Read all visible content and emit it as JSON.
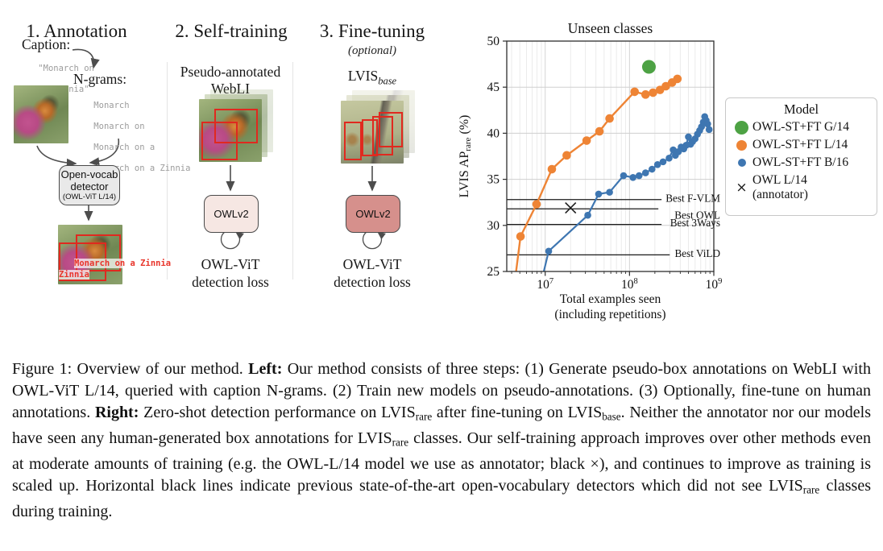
{
  "diagram": {
    "steps": [
      {
        "title": "1. Annotation",
        "caption_label": "Caption:",
        "caption_line1": "\"Monarch on",
        "caption_line2": " a Zinnia\"",
        "ngrams_label": "N-grams:",
        "ngrams": [
          "Monarch",
          "Monarch on",
          "Monarch on a",
          "Monarch on a Zinnia",
          "..."
        ],
        "detector_line1": "Open-vocab",
        "detector_line2": "detector",
        "detector_line3": "(OWL-ViT L/14)",
        "detections": [
          "Monarch on a Zinnia",
          "Zinnia"
        ]
      },
      {
        "title": "2. Self-training",
        "data_label_line1": "Pseudo-annotated",
        "data_label_line2": "WebLI",
        "model_box": "OWLv2",
        "loss_line1": "OWL-ViT",
        "loss_line2": "detection loss"
      },
      {
        "title": "3. Fine-tuning",
        "subtitle": "(optional)",
        "data_label_main": "LVIS",
        "data_label_sub": "base",
        "model_box": "OWLv2",
        "loss_line1": "OWL-ViT",
        "loss_line2": "detection loss"
      }
    ]
  },
  "chart_data": {
    "type": "scatter",
    "title": "Unseen classes",
    "xlabel_line1": "Total examples seen",
    "xlabel_line2": "(including repetitions)",
    "ylabel_pre": "LVIS AP",
    "ylabel_sub": "rare",
    "ylabel_post": " (%)",
    "x_scale": "log",
    "xlim": [
      3500000.0,
      1000000000.0
    ],
    "ylim": [
      25,
      50
    ],
    "xticks": [
      10000000.0,
      100000000.0,
      1000000000.0
    ],
    "yticks": [
      25,
      30,
      35,
      40,
      45,
      50
    ],
    "grid": true,
    "series": [
      {
        "name": "OWL-ST+FT G/14",
        "color": "#4da244",
        "marker": "circle",
        "marker_size": 8.5,
        "line": false,
        "points": [
          [
            170000000.0,
            47.2
          ]
        ]
      },
      {
        "name": "OWL-ST+FT L/14",
        "color": "#ee8435",
        "marker": "circle",
        "marker_size": 5.3,
        "line": true,
        "entry_point": [
          4300000.0,
          23.5
        ],
        "points": [
          [
            5100000.0,
            28.8
          ],
          [
            7900000.0,
            32.3
          ],
          [
            12000000.0,
            36.1
          ],
          [
            18000000.0,
            37.6
          ],
          [
            31000000.0,
            39.2
          ],
          [
            44000000.0,
            40.2
          ],
          [
            58000000.0,
            41.6
          ],
          [
            115000000.0,
            44.5
          ],
          [
            155000000.0,
            44.2
          ],
          [
            190000000.0,
            44.4
          ],
          [
            230000000.0,
            44.7
          ],
          [
            270000000.0,
            45.1
          ],
          [
            320000000.0,
            45.5
          ],
          [
            370000000.0,
            45.9
          ]
        ]
      },
      {
        "name": "OWL-ST+FT B/16",
        "color": "#3e76b1",
        "marker": "circle",
        "marker_size": 4.3,
        "line": true,
        "entry_point": [
          8800000.0,
          23.5
        ],
        "points": [
          [
            11000000.0,
            27.2
          ],
          [
            32000000.0,
            31.1
          ],
          [
            43000000.0,
            33.4
          ],
          [
            58000000.0,
            33.6
          ],
          [
            85000000.0,
            35.4
          ],
          [
            110000000.0,
            35.2
          ],
          [
            130000000.0,
            35.4
          ],
          [
            155000000.0,
            35.7
          ],
          [
            185000000.0,
            36.1
          ],
          [
            215000000.0,
            36.6
          ],
          [
            250000000.0,
            36.9
          ],
          [
            295000000.0,
            37.3
          ],
          [
            330000000.0,
            38.2
          ],
          [
            350000000.0,
            37.6
          ],
          [
            380000000.0,
            38.0
          ],
          [
            410000000.0,
            38.5
          ],
          [
            440000000.0,
            38.3
          ],
          [
            470000000.0,
            38.7
          ],
          [
            500000000.0,
            39.6
          ],
          [
            530000000.0,
            38.8
          ],
          [
            560000000.0,
            39.1
          ],
          [
            600000000.0,
            39.4
          ],
          [
            640000000.0,
            39.9
          ],
          [
            680000000.0,
            40.3
          ],
          [
            715000000.0,
            40.7
          ],
          [
            750000000.0,
            41.2
          ],
          [
            780000000.0,
            41.8
          ],
          [
            810000000.0,
            41.4
          ],
          [
            845000000.0,
            41.0
          ],
          [
            880000000.0,
            40.4
          ]
        ]
      },
      {
        "name": "OWL L/14 (annotator)",
        "color": "#1b1b1b",
        "marker": "x",
        "marker_size": 6.5,
        "line": false,
        "points": [
          [
            20000000.0,
            31.9
          ]
        ]
      }
    ],
    "baselines": [
      {
        "label": "Best F-VLM",
        "value": 32.8,
        "x_end": 240000000.0,
        "label_dy": 2.5
      },
      {
        "label": "Best OWL",
        "value": 31.8,
        "x_end": 220000000.0,
        "label_dy": 12.5
      },
      {
        "label": "Best 3Ways",
        "value": 30.1,
        "x_end": 240000000.0,
        "label_dy": 2.5
      },
      {
        "label": "Best ViLD",
        "value": 26.8,
        "x_end": 300000000.0,
        "label_dy": 2.5
      }
    ],
    "legend": {
      "title": "Model",
      "position": "right",
      "entries": [
        {
          "label": "OWL-ST+FT G/14",
          "marker": "circle",
          "color": "#4da244",
          "size": 17
        },
        {
          "label": "OWL-ST+FT L/14",
          "marker": "circle",
          "color": "#ee8435",
          "size": 13
        },
        {
          "label": "OWL-ST+FT B/16",
          "marker": "circle",
          "color": "#3e76b1",
          "size": 10
        },
        {
          "label": "OWL L/14",
          "label_line2": "(annotator)",
          "marker": "x",
          "color": "#1b1b1b",
          "size": 17
        }
      ]
    }
  },
  "caption": {
    "segments": [
      {
        "t": "Figure 1: Overview of our method. "
      },
      {
        "t": "Left:",
        "b": true
      },
      {
        "t": " Our method consists of three steps: (1) Generate pseudo-box annotations on WebLI with OWL-ViT L/14, queried with caption N-grams. (2) Train new models on pseudo-annotations. (3) Optionally, fine-tune on human annotations. "
      },
      {
        "t": "Right:",
        "b": true
      },
      {
        "t": " Zero-shot detection performance on LVIS"
      },
      {
        "t": "rare",
        "sub": true
      },
      {
        "t": " after fine-tuning on LVIS"
      },
      {
        "t": "base",
        "sub": true
      },
      {
        "t": ". Neither the annotator nor our models have seen any human-generated box annotations for LVIS"
      },
      {
        "t": "rare",
        "sub": true
      },
      {
        "t": " classes. Our self-training approach improves over other methods even at moderate amounts of training (e.g. the OWL-L/14 model we use as annotator; black ×), and continues to improve as training is scaled up. Horizontal black lines indicate previous state-of-the-art open-vocabulary detectors which did not see LVIS"
      },
      {
        "t": "rare",
        "sub": true
      },
      {
        "t": " classes during training."
      }
    ]
  }
}
